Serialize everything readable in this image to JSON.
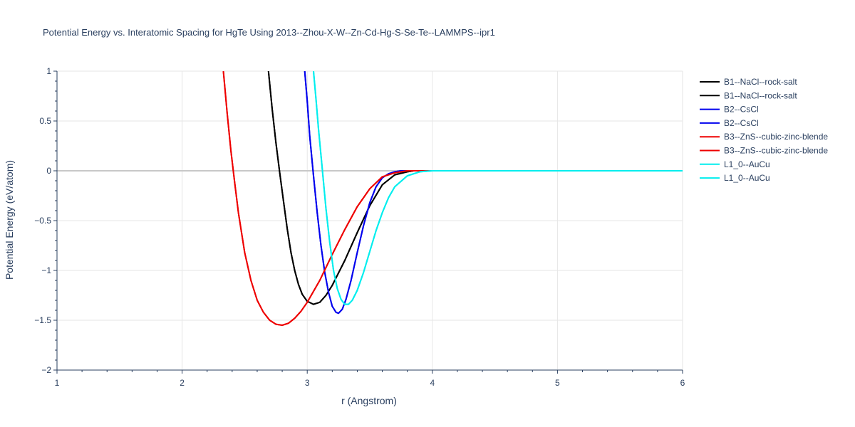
{
  "chart_data": {
    "type": "line",
    "title": "Potential Energy vs. Interatomic Spacing for HgTe Using 2013--Zhou-X-W--Zn-Cd-Hg-S-Se-Te--LAMMPS--ipr1",
    "xlabel": "r (Angstrom)",
    "ylabel": "Potential Energy (eV/atom)",
    "xlim": [
      1,
      6
    ],
    "ylim": [
      -2,
      1
    ],
    "xticks": [
      1,
      2,
      3,
      4,
      5,
      6
    ],
    "yticks": [
      1,
      0.5,
      0,
      -0.5,
      -1,
      -1.5,
      -2
    ],
    "xtick_labels": [
      "1",
      "2",
      "3",
      "4",
      "5",
      "6"
    ],
    "ytick_labels": [
      "1",
      "0.5",
      "0",
      "−0.5",
      "−1",
      "−1.5",
      "−2"
    ],
    "grid": true,
    "legend_position": "right",
    "series": [
      {
        "name": "B1--NaCl--rock-salt",
        "color": "#000000",
        "x": [
          2.69,
          2.72,
          2.75,
          2.78,
          2.81,
          2.84,
          2.87,
          2.9,
          2.93,
          2.96,
          3.0,
          3.05,
          3.1,
          3.15,
          3.2,
          3.3,
          3.4,
          3.5,
          3.6,
          3.7,
          3.8,
          3.85,
          3.9,
          4.0,
          4.1
        ],
        "y": [
          1.0,
          0.62,
          0.28,
          -0.02,
          -0.3,
          -0.58,
          -0.82,
          -1.0,
          -1.14,
          -1.24,
          -1.31,
          -1.34,
          -1.32,
          -1.25,
          -1.15,
          -0.9,
          -0.62,
          -0.35,
          -0.14,
          -0.04,
          -0.01,
          0.0,
          0.0,
          0.0,
          0.0
        ]
      },
      {
        "name": "B1--NaCl--rock-salt",
        "color": "#000000",
        "x": [
          2.69,
          2.72,
          2.75,
          2.78,
          2.81,
          2.84,
          2.87,
          2.9,
          2.93,
          2.96,
          3.0,
          3.05,
          3.1,
          3.15,
          3.2,
          3.3,
          3.4,
          3.5,
          3.6,
          3.7,
          3.8,
          3.85,
          3.9,
          4.0,
          4.1
        ],
        "y": [
          1.0,
          0.62,
          0.28,
          -0.02,
          -0.3,
          -0.58,
          -0.82,
          -1.0,
          -1.14,
          -1.24,
          -1.31,
          -1.34,
          -1.32,
          -1.25,
          -1.15,
          -0.9,
          -0.62,
          -0.35,
          -0.14,
          -0.04,
          -0.01,
          0.0,
          0.0,
          0.0,
          0.0
        ]
      },
      {
        "name": "B2--CsCl",
        "color": "#0000ee",
        "x": [
          2.98,
          3.0,
          3.02,
          3.05,
          3.08,
          3.11,
          3.14,
          3.17,
          3.2,
          3.23,
          3.25,
          3.28,
          3.31,
          3.35,
          3.4,
          3.45,
          3.5,
          3.55,
          3.6,
          3.65,
          3.7,
          3.75,
          3.8,
          3.9,
          4.0
        ],
        "y": [
          1.0,
          0.7,
          0.35,
          -0.05,
          -0.42,
          -0.75,
          -1.02,
          -1.22,
          -1.36,
          -1.42,
          -1.43,
          -1.39,
          -1.29,
          -1.1,
          -0.82,
          -0.55,
          -0.32,
          -0.16,
          -0.07,
          -0.03,
          -0.01,
          0.0,
          0.0,
          0.0,
          0.0
        ]
      },
      {
        "name": "B2--CsCl",
        "color": "#0000ee",
        "x": [
          2.98,
          3.0,
          3.02,
          3.05,
          3.08,
          3.11,
          3.14,
          3.17,
          3.2,
          3.23,
          3.25,
          3.28,
          3.31,
          3.35,
          3.4,
          3.45,
          3.5,
          3.55,
          3.6,
          3.65,
          3.7,
          3.75,
          3.8,
          3.9,
          4.0
        ],
        "y": [
          1.0,
          0.7,
          0.35,
          -0.05,
          -0.42,
          -0.75,
          -1.02,
          -1.22,
          -1.36,
          -1.42,
          -1.43,
          -1.39,
          -1.29,
          -1.1,
          -0.82,
          -0.55,
          -0.32,
          -0.16,
          -0.07,
          -0.03,
          -0.01,
          0.0,
          0.0,
          0.0,
          0.0
        ]
      },
      {
        "name": "B3--ZnS--cubic-zinc-blende",
        "color": "#ee0000",
        "x": [
          2.33,
          2.36,
          2.39,
          2.42,
          2.45,
          2.5,
          2.55,
          2.6,
          2.65,
          2.7,
          2.75,
          2.8,
          2.85,
          2.9,
          2.95,
          3.0,
          3.1,
          3.2,
          3.3,
          3.4,
          3.5,
          3.6,
          3.7,
          3.8,
          3.9,
          4.0
        ],
        "y": [
          1.0,
          0.58,
          0.2,
          -0.12,
          -0.42,
          -0.82,
          -1.1,
          -1.3,
          -1.42,
          -1.5,
          -1.54,
          -1.55,
          -1.53,
          -1.48,
          -1.41,
          -1.32,
          -1.1,
          -0.84,
          -0.59,
          -0.36,
          -0.18,
          -0.06,
          -0.02,
          0.0,
          0.0,
          0.0
        ]
      },
      {
        "name": "B3--ZnS--cubic-zinc-blende",
        "color": "#ee0000",
        "x": [
          2.33,
          2.36,
          2.39,
          2.42,
          2.45,
          2.5,
          2.55,
          2.6,
          2.65,
          2.7,
          2.75,
          2.8,
          2.85,
          2.9,
          2.95,
          3.0,
          3.1,
          3.2,
          3.3,
          3.4,
          3.5,
          3.6,
          3.7,
          3.8,
          3.9,
          4.0
        ],
        "y": [
          1.0,
          0.58,
          0.2,
          -0.12,
          -0.42,
          -0.82,
          -1.1,
          -1.3,
          -1.42,
          -1.5,
          -1.54,
          -1.55,
          -1.53,
          -1.48,
          -1.41,
          -1.32,
          -1.1,
          -0.84,
          -0.59,
          -0.36,
          -0.18,
          -0.06,
          -0.02,
          0.0,
          0.0,
          0.0
        ]
      },
      {
        "name": "L1_0--AuCu",
        "color": "#00eeee",
        "x": [
          3.05,
          3.07,
          3.09,
          3.12,
          3.15,
          3.18,
          3.21,
          3.24,
          3.27,
          3.3,
          3.33,
          3.36,
          3.4,
          3.45,
          3.5,
          3.55,
          3.6,
          3.65,
          3.7,
          3.8,
          3.9,
          4.0,
          4.1,
          4.2,
          4.5,
          5.0,
          5.5,
          6.0
        ],
        "y": [
          1.0,
          0.72,
          0.42,
          0.02,
          -0.38,
          -0.72,
          -1.0,
          -1.18,
          -1.29,
          -1.34,
          -1.34,
          -1.3,
          -1.2,
          -1.02,
          -0.81,
          -0.6,
          -0.42,
          -0.27,
          -0.16,
          -0.05,
          -0.01,
          0.0,
          0.0,
          0.0,
          0.0,
          0.0,
          0.0,
          0.0
        ]
      },
      {
        "name": "L1_0--AuCu",
        "color": "#00eeee",
        "x": [
          3.05,
          3.07,
          3.09,
          3.12,
          3.15,
          3.18,
          3.21,
          3.24,
          3.27,
          3.3,
          3.33,
          3.36,
          3.4,
          3.45,
          3.5,
          3.55,
          3.6,
          3.65,
          3.7,
          3.8,
          3.9,
          4.0,
          4.1,
          4.2,
          4.5,
          5.0,
          5.5,
          6.0
        ],
        "y": [
          1.0,
          0.72,
          0.42,
          0.02,
          -0.38,
          -0.72,
          -1.0,
          -1.18,
          -1.29,
          -1.34,
          -1.34,
          -1.3,
          -1.2,
          -1.02,
          -0.81,
          -0.6,
          -0.42,
          -0.27,
          -0.16,
          -0.05,
          -0.01,
          0.0,
          0.0,
          0.0,
          0.0,
          0.0,
          0.0,
          0.0
        ]
      }
    ]
  }
}
